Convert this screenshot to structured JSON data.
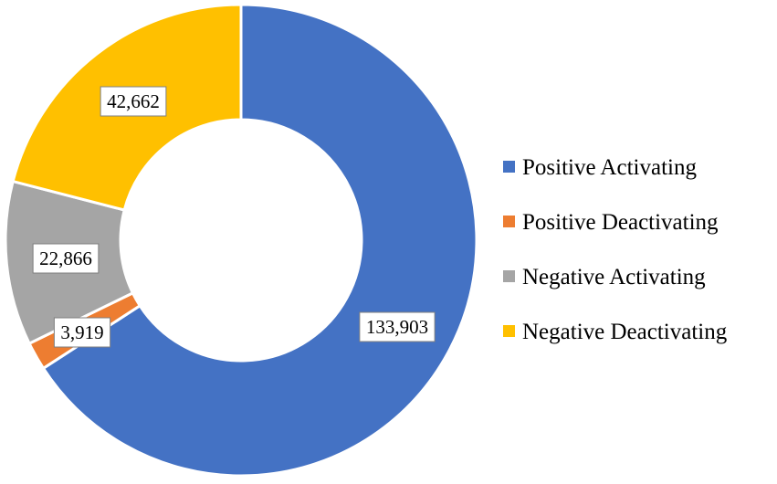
{
  "chart_data": {
    "type": "pie",
    "variant": "donut",
    "categories": [
      "Positive Activating",
      "Positive Deactivating",
      "Negative Activating",
      "Negative Deactivating"
    ],
    "values": [
      133903,
      3919,
      22866,
      42662
    ],
    "value_labels": [
      "133,903",
      "3,919",
      "22,866",
      "42,662"
    ],
    "colors": [
      "#4472C4",
      "#ED7D31",
      "#A5A5A5",
      "#FFC000"
    ],
    "legend_position": "right",
    "start_angle": "top (12 o'clock), clockwise"
  }
}
